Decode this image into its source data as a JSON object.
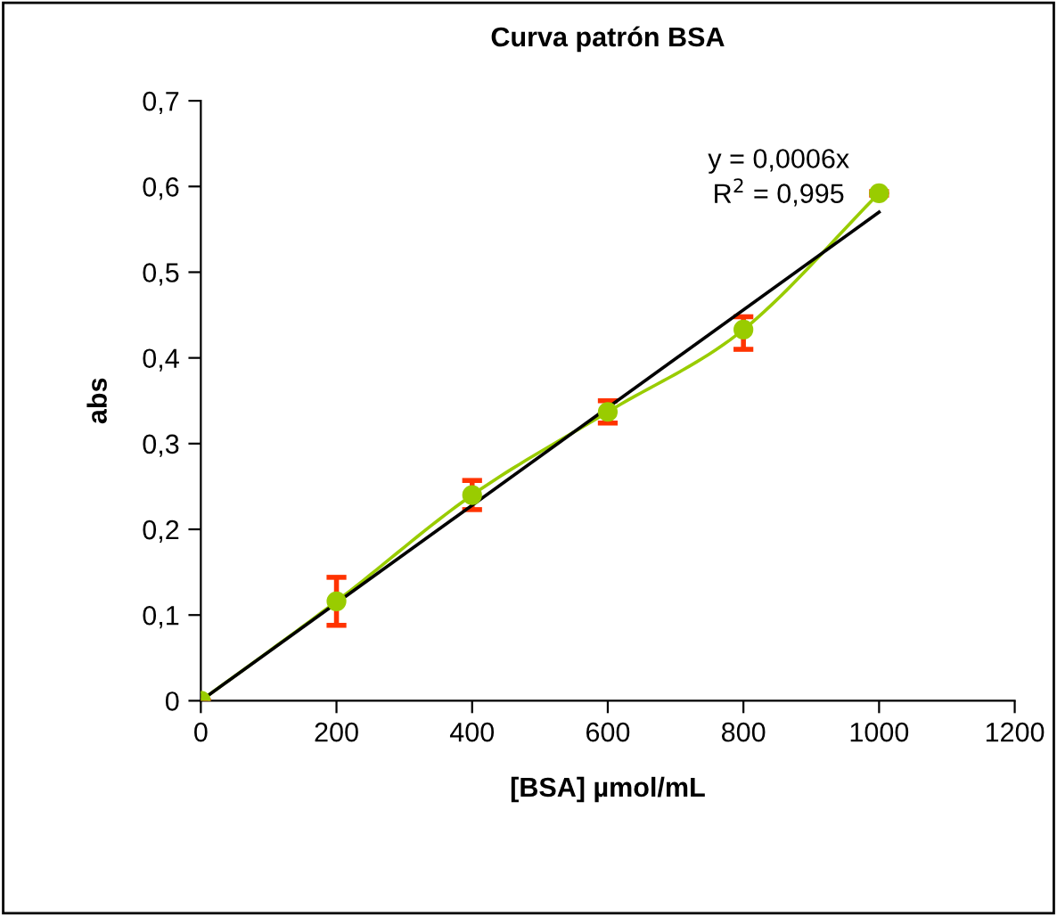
{
  "chart_data": {
    "type": "line",
    "title": "Curva patrón BSA",
    "xlabel": "[BSA] µmol/mL",
    "ylabel": "abs",
    "x": [
      0,
      200,
      400,
      600,
      800,
      1000
    ],
    "series": [
      {
        "color": "#99cc00",
        "marker": "circle",
        "values": [
          0,
          0.116,
          0.24,
          0.337,
          0.433,
          0.592
        ],
        "errors": [
          null,
          0.028,
          0.017,
          0.013,
          [
            0.41,
            0.448
          ],
          0.002
        ]
      },
      {
        "color": "#000000",
        "marker": "none",
        "x": [
          0,
          1000
        ],
        "values": [
          0,
          0.57
        ]
      }
    ],
    "annotations": [
      "y = 0,0006x\nR$^{2}$ = 0,995"
    ],
    "xlim": [
      0,
      1200
    ],
    "xticks": [
      0,
      200,
      400,
      600,
      800,
      1000,
      1200
    ],
    "ylim": [
      0,
      0.7
    ],
    "yticks": [
      0,
      {
        "value": 0.1,
        "label": "0,1"
      },
      {
        "value": 0.2,
        "label": "0,2"
      },
      {
        "value": 0.3,
        "label": "0,3"
      },
      {
        "value": 0.4,
        "label": "0,4"
      },
      {
        "value": 0.5,
        "label": "0,5"
      },
      {
        "value": 0.6,
        "label": "0,6"
      },
      {
        "value": 0.7,
        "label": "0,7"
      }
    ],
    "grid": false,
    "legend": false
  }
}
